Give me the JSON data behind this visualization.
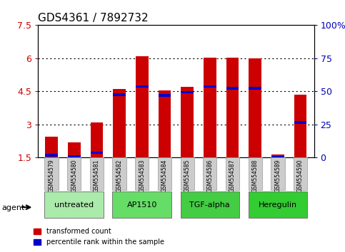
{
  "title": "GDS4361 / 7892732",
  "samples": [
    "GSM554579",
    "GSM554580",
    "GSM554581",
    "GSM554582",
    "GSM554583",
    "GSM554584",
    "GSM554585",
    "GSM554586",
    "GSM554587",
    "GSM554588",
    "GSM554589",
    "GSM554590"
  ],
  "red_values": [
    2.45,
    2.2,
    3.08,
    4.62,
    6.08,
    4.55,
    4.7,
    6.04,
    6.02,
    6.01,
    1.65,
    4.35
  ],
  "blue_values": [
    1.6,
    1.55,
    1.72,
    4.35,
    4.72,
    4.32,
    4.46,
    4.72,
    4.65,
    4.65,
    1.52,
    3.08
  ],
  "ymin": 1.5,
  "ymax": 7.5,
  "yticks": [
    1.5,
    3.0,
    4.5,
    6.0,
    7.5
  ],
  "ytick_labels": [
    "1.5",
    "3",
    "4.5",
    "6",
    "7.5"
  ],
  "right_yticks": [
    1.5,
    3.0,
    4.5,
    6.0,
    7.5
  ],
  "right_ytick_labels": [
    "0",
    "25",
    "50",
    "75",
    "100%"
  ],
  "groups": [
    {
      "label": "untreated",
      "indices": [
        0,
        1,
        2
      ],
      "color": "#aaeaaa"
    },
    {
      "label": "AP1510",
      "indices": [
        3,
        4,
        5
      ],
      "color": "#66dd66"
    },
    {
      "label": "TGF-alpha",
      "indices": [
        6,
        7,
        8
      ],
      "color": "#44cc44"
    },
    {
      "label": "Heregulin",
      "indices": [
        9,
        10,
        11
      ],
      "color": "#33cc33"
    }
  ],
  "red_color": "#cc0000",
  "blue_color": "#0000cc",
  "bar_width": 0.55,
  "agent_label": "agent",
  "legend_items": [
    {
      "label": "transformed count",
      "color": "#cc0000"
    },
    {
      "label": "percentile rank within the sample",
      "color": "#0000cc"
    }
  ],
  "title_fontsize": 11,
  "axis_label_color_left": "#cc0000",
  "axis_label_color_right": "#0000bb",
  "blue_bar_height": 0.12
}
